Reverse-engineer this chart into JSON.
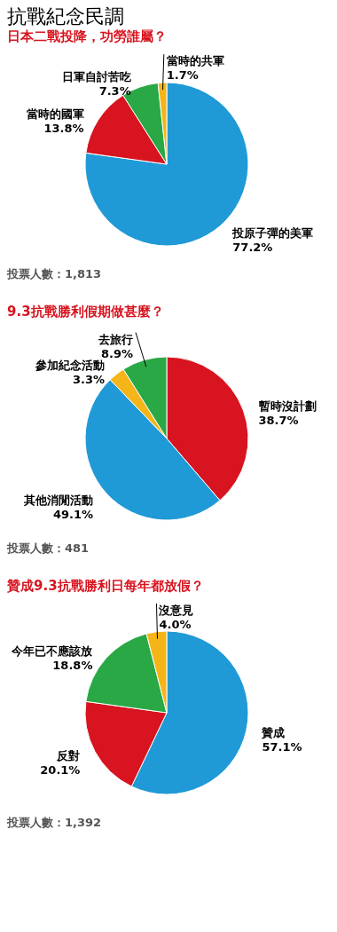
{
  "chart_data": [
    {
      "type": "pie",
      "title": "抗戰紀念民調",
      "subtitle": "日本二戰投降，功勞誰屬？",
      "categories": [
        "投原子彈的美軍",
        "當時的國軍",
        "日軍自討苦吃",
        "當時的共軍"
      ],
      "values": [
        77.2,
        13.8,
        7.3,
        1.7
      ],
      "value_labels": [
        "77.2%",
        "13.8%",
        "7.3%",
        "1.7%"
      ],
      "colors": [
        "#1f9ad6",
        "#d7141f",
        "#2aa845",
        "#f5b417"
      ],
      "annotations": [
        "投票人數：1,813"
      ]
    },
    {
      "type": "pie",
      "title": "9.3抗戰勝利假期做甚麼？",
      "categories": [
        "暫時沒計劃",
        "其他消閒活動",
        "參加紀念活動",
        "去旅行"
      ],
      "values": [
        38.7,
        49.1,
        3.3,
        8.9
      ],
      "value_labels": [
        "38.7%",
        "49.1%",
        "3.3%",
        "8.9%"
      ],
      "colors": [
        "#d7141f",
        "#1f9ad6",
        "#f5b417",
        "#2aa845"
      ],
      "annotations": [
        "投票人數：481"
      ]
    },
    {
      "type": "pie",
      "title": "贊成9.3抗戰勝利日每年都放假？",
      "categories": [
        "贊成",
        "反對",
        "今年已不應該放",
        "沒意見"
      ],
      "values": [
        57.1,
        20.1,
        18.8,
        4.0
      ],
      "value_labels": [
        "57.1%",
        "20.1%",
        "18.8%",
        "4.0%"
      ],
      "colors": [
        "#1f9ad6",
        "#d7141f",
        "#2aa845",
        "#f5b417"
      ],
      "annotations": [
        "投票人數：1,392"
      ]
    }
  ]
}
